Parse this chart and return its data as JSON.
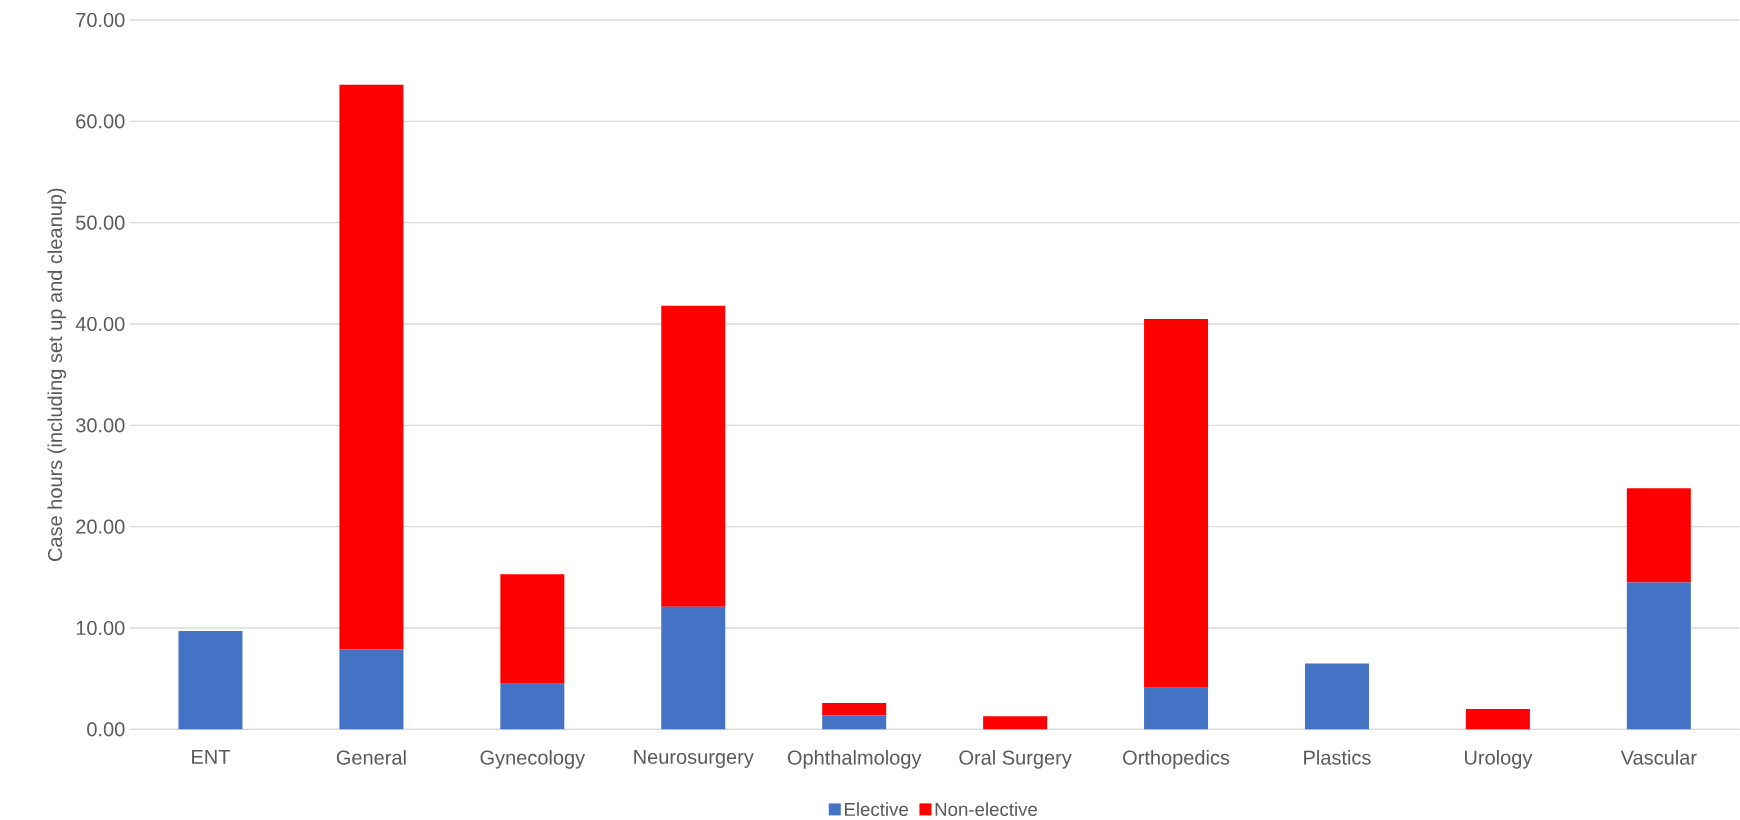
{
  "chart_data": {
    "type": "bar",
    "stacked": true,
    "ylabel": "Case hours (including set up and cleanup)",
    "categories": [
      "ENT",
      "General",
      "Gynecology",
      "Neurosurgery",
      "Ophthalmology",
      "Oral Surgery",
      "Orthopedics",
      "Plastics",
      "Urology",
      "Vascular"
    ],
    "series": [
      {
        "name": "Elective",
        "color": "#4472c4",
        "values": [
          9.7,
          7.9,
          4.5,
          12.1,
          1.4,
          0,
          4.1,
          6.5,
          0,
          14.5
        ]
      },
      {
        "name": "Non-elective",
        "color": "#ff0000",
        "values": [
          0,
          55.7,
          10.8,
          29.7,
          1.2,
          1.3,
          36.4,
          0,
          2.0,
          9.3
        ]
      }
    ],
    "ylim": [
      0,
      70
    ],
    "yticks": [
      {
        "value": 0,
        "label": "0.00"
      },
      {
        "value": 10,
        "label": "10.00"
      },
      {
        "value": 20,
        "label": "20.00"
      },
      {
        "value": 30,
        "label": "30.00"
      },
      {
        "value": 40,
        "label": "40.00"
      },
      {
        "value": 50,
        "label": "50.00"
      },
      {
        "value": 60,
        "label": "60.00"
      },
      {
        "value": 70,
        "label": "70.00"
      }
    ],
    "grid": "y",
    "legend": "bottom"
  }
}
